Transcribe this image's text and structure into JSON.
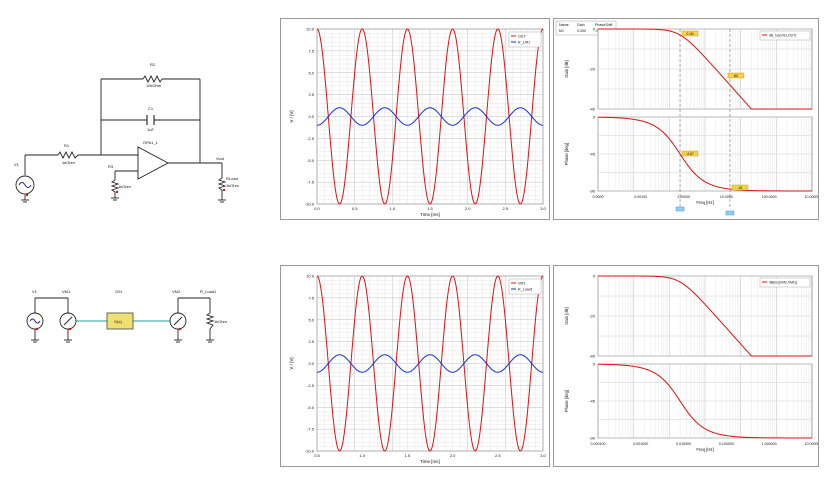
{
  "schematic_top": {
    "labels": {
      "r_fb": "R2",
      "r_fb_val": "10kOhm",
      "c_fb": "C1",
      "c_fb_val": "1uF",
      "r_in": "R1",
      "r_in_val": "1kOhm",
      "opamp": "OPA1_1",
      "source": "V1",
      "r_bias": "R3",
      "r_bias_val": "1kOhm",
      "r_load": "RLoad",
      "r_load_val": "1kOhm",
      "node_out": "Vout"
    }
  },
  "schematic_bottom": {
    "labels": {
      "src": "V1",
      "vm1": "VM1",
      "block": "G(s)",
      "block_title": "G01",
      "vm2": "VM2",
      "rload": "R_Load1",
      "rload_val": "1kOhm"
    }
  },
  "charts": {
    "top_time": {
      "type": "line",
      "xlabel": "Time [ms]",
      "ylabel": "V / [V]",
      "x_ticks": [
        "0.0",
        "0.5",
        "1.0",
        "1.5",
        "2.0",
        "2.5",
        "3.0"
      ],
      "y_ticks": [
        "10.0",
        "7.5",
        "5.0",
        "2.5",
        "0.0",
        "-2.5",
        "-5.0",
        "-7.5",
        "-10.0"
      ],
      "legend": [
        "OUT",
        "R_1/R1"
      ],
      "series_colors": [
        "#e01010",
        "#1030e0"
      ]
    },
    "top_bode": {
      "header": {
        "cols": [
          "Name",
          "Gain",
          "PhaseShift"
        ],
        "row": [
          "M1",
          "0.000",
          "-90.000"
        ]
      },
      "legend": [
        "dB_tos(VS1,OUT)"
      ],
      "gain_ylabel": "Gain [dB]",
      "gain_ticks": [
        "0",
        "-20",
        "-40"
      ],
      "phase_ylabel": "Phase [deg]",
      "phase_ticks": [
        "0",
        "-45",
        "-90"
      ],
      "xlabel": "Freq [Hz]",
      "x_ticks": [
        "0.0000",
        "0.00100",
        "1.00000",
        "10.0000",
        "100.0000",
        "10.00000"
      ],
      "markers": [
        "0.1M",
        "M2",
        "-6.67",
        "-45"
      ]
    },
    "bottom_time": {
      "type": "line",
      "xlabel": "Time [ms]",
      "ylabel": "V / [V]",
      "x_ticks": [
        "0.5",
        "1.0",
        "1.5",
        "2.0",
        "2.5",
        "3.0"
      ],
      "y_ticks": [
        "10.0",
        "7.5",
        "5.0",
        "2.5",
        "0.0",
        "-2.5",
        "-5.0",
        "-7.5",
        "-10.0"
      ],
      "legend": [
        "VM1",
        "R_Load1"
      ],
      "series_colors": [
        "#e01010",
        "#1030e0"
      ]
    },
    "bottom_bode": {
      "legend": [
        "dB(tos(VM2,VM1))"
      ],
      "gain_ylabel": "Gain [dB]",
      "gain_ticks": [
        "0",
        "-20",
        "-40"
      ],
      "phase_ylabel": "Phase [deg]",
      "phase_ticks": [
        "0",
        "-45",
        "-90"
      ],
      "xlabel": "Freq [Hz]",
      "x_ticks": [
        "0.000100",
        "0.001000",
        "0.010000",
        "0.100000",
        "1.000000",
        "10.00000"
      ]
    }
  },
  "chart_data": [
    {
      "type": "line",
      "xlabel": "Time [ms]",
      "ylabel": "V / [V]",
      "x_range": [
        0,
        3
      ],
      "ylim": [
        -10,
        10
      ],
      "series": [
        {
          "name": "OUT",
          "amplitude": 10,
          "cycles": 5,
          "color": "#e01010"
        },
        {
          "name": "R_1/R1",
          "amplitude": 1,
          "cycles": 5,
          "color": "#1030e0"
        }
      ],
      "grid": true,
      "legend_position": "top-right"
    },
    {
      "type": "line",
      "xlabel": "Freq [Hz]",
      "series": [
        {
          "name": "dB_tos(VS1,OUT)",
          "cutoff_decade": 2.3
        }
      ],
      "grid": true,
      "legend_position": "top-right"
    },
    {
      "type": "line",
      "xlabel": "Time [ms]",
      "ylabel": "V / [V]",
      "ylim": [
        -10,
        10
      ],
      "series": [
        {
          "name": "VM1",
          "amplitude": 10,
          "cycles": 5,
          "color": "#e01010"
        },
        {
          "name": "R_Load1",
          "amplitude": 1,
          "cycles": 5,
          "color": "#1030e0"
        }
      ],
      "grid": true,
      "legend_position": "top-right"
    },
    {
      "type": "line",
      "xlabel": "Freq [Hz]",
      "series": [
        {
          "name": "dB(tos(VM2,VM1))",
          "cutoff_decade": 2.3
        }
      ],
      "grid": true,
      "legend_position": "top-right"
    }
  ]
}
